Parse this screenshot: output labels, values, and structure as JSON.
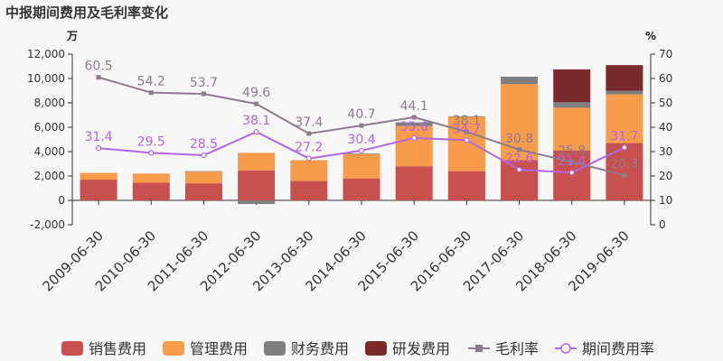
{
  "chart_data": {
    "type": "bar",
    "title": "中报期间费用及毛利率变化",
    "y_left_unit": "万",
    "y_right_unit": "%",
    "y_left_range": [
      -2000,
      12000
    ],
    "y_left_ticks": [
      "-2,000",
      "0",
      "2,000",
      "4,000",
      "6,000",
      "8,000",
      "10,000",
      "12,000"
    ],
    "y_right_range": [
      0,
      70
    ],
    "y_right_ticks": [
      "0",
      "10",
      "20",
      "30",
      "40",
      "50",
      "60",
      "70"
    ],
    "categories": [
      "2009-06-30",
      "2010-06-30",
      "2011-06-30",
      "2012-06-30",
      "2013-06-30",
      "2014-06-30",
      "2015-06-30",
      "2016-06-30",
      "2017-06-30",
      "2018-06-30",
      "2019-06-30"
    ],
    "series": [
      {
        "name": "销售费用",
        "type": "bar",
        "color": "#c8504e",
        "values": [
          1700,
          1450,
          1400,
          2450,
          1600,
          1800,
          2800,
          2400,
          3300,
          4100,
          4700
        ]
      },
      {
        "name": "管理费用",
        "type": "bar",
        "color": "#f69c4b",
        "values": [
          550,
          750,
          950,
          1450,
          1700,
          2000,
          3300,
          4450,
          6250,
          3500,
          4000
        ]
      },
      {
        "name": "财务费用",
        "type": "bar",
        "color": "#7f7f7f",
        "values": [
          0,
          0,
          50,
          -300,
          0,
          50,
          300,
          50,
          600,
          450,
          300
        ]
      },
      {
        "name": "研发费用",
        "type": "bar",
        "color": "#7b2a2c",
        "values": [
          0,
          0,
          0,
          0,
          0,
          0,
          0,
          0,
          0,
          2700,
          2100
        ]
      },
      {
        "name": "毛利率",
        "type": "line",
        "color": "#8c7b8c",
        "values": [
          60.5,
          54.2,
          53.7,
          49.6,
          37.4,
          40.7,
          44.1,
          38.1,
          30.8,
          25.8,
          20.3
        ]
      },
      {
        "name": "期间费用率",
        "type": "line",
        "color": "#b266e6",
        "values": [
          31.4,
          29.5,
          28.5,
          38.1,
          27.2,
          30.4,
          35.6,
          34.7,
          22.6,
          21.4,
          31.7
        ]
      }
    ],
    "legend_position": "bottom",
    "grid": false
  }
}
